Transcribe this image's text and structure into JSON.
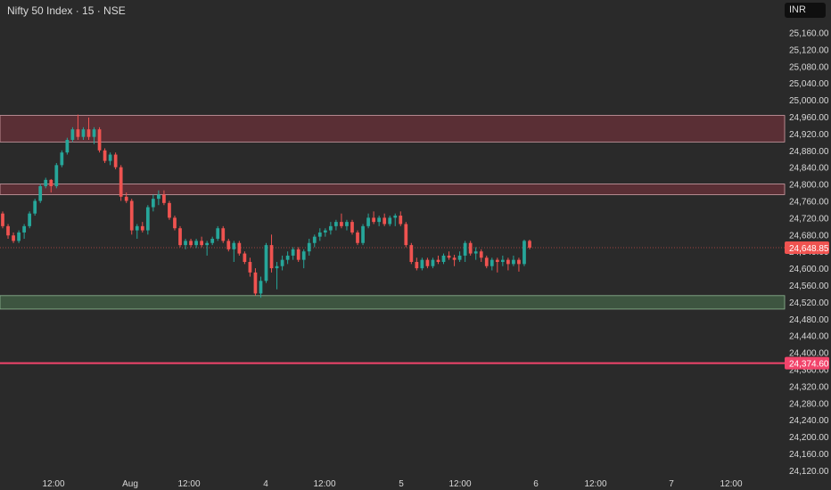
{
  "header": {
    "title": "Nifty 50 Index · 15 · NSE",
    "currency": "INR"
  },
  "colors": {
    "background": "#2a2a2a",
    "up": "#26a69a",
    "down": "#ef5350",
    "text": "#d9d9d9",
    "resistance_zone": "#5a2f35",
    "support_zone": "#3d5540",
    "support_line": "#f2446b",
    "last_price_tag": "#ef5350",
    "line_tag": "#f2446b"
  },
  "chart_data": {
    "type": "candlestick",
    "symbol": "Nifty 50 Index",
    "interval": "15",
    "exchange": "NSE",
    "currency": "INR",
    "last_price": 24648.85,
    "ylim": [
      24100,
      25220
    ],
    "y_ticks": [
      "25,160.00",
      "25,120.00",
      "25,080.00",
      "25,040.00",
      "25,000.00",
      "24,960.00",
      "24,920.00",
      "24,880.00",
      "24,840.00",
      "24,800.00",
      "24,760.00",
      "24,720.00",
      "24,680.00",
      "24,640.00",
      "24,600.00",
      "24,560.00",
      "24,520.00",
      "24,480.00",
      "24,440.00",
      "24,400.00",
      "24,360.00",
      "24,320.00",
      "24,280.00",
      "24,240.00",
      "24,200.00",
      "24,160.00",
      "24,120.00"
    ],
    "x_labels": [
      "12:00",
      "Aug",
      "12:00",
      "4",
      "12:00",
      "5",
      "12:00",
      "6",
      "12:00",
      "7",
      "12:00"
    ],
    "price_labels": [
      {
        "value": 24648.85,
        "text": "24,648.85",
        "kind": "last"
      },
      {
        "value": 24374.6,
        "text": "24,374.60",
        "kind": "line"
      }
    ],
    "zones": [
      {
        "name": "resistance",
        "from": 24900,
        "to": 24963
      },
      {
        "name": "resistance",
        "from": 24775,
        "to": 24800
      },
      {
        "name": "support",
        "from": 24503,
        "to": 24535
      }
    ],
    "lines": [
      {
        "value": 24374.6
      }
    ],
    "candles": [
      {
        "o": 24730,
        "h": 24735,
        "l": 24695,
        "c": 24700
      },
      {
        "o": 24700,
        "h": 24705,
        "l": 24670,
        "c": 24678
      },
      {
        "o": 24678,
        "h": 24685,
        "l": 24660,
        "c": 24665
      },
      {
        "o": 24665,
        "h": 24690,
        "l": 24660,
        "c": 24685
      },
      {
        "o": 24685,
        "h": 24705,
        "l": 24670,
        "c": 24700
      },
      {
        "o": 24700,
        "h": 24735,
        "l": 24695,
        "c": 24730
      },
      {
        "o": 24730,
        "h": 24765,
        "l": 24725,
        "c": 24760
      },
      {
        "o": 24760,
        "h": 24800,
        "l": 24755,
        "c": 24795
      },
      {
        "o": 24795,
        "h": 24815,
        "l": 24790,
        "c": 24810
      },
      {
        "o": 24810,
        "h": 24812,
        "l": 24780,
        "c": 24795
      },
      {
        "o": 24795,
        "h": 24850,
        "l": 24790,
        "c": 24845
      },
      {
        "o": 24845,
        "h": 24880,
        "l": 24840,
        "c": 24875
      },
      {
        "o": 24875,
        "h": 24910,
        "l": 24870,
        "c": 24905
      },
      {
        "o": 24905,
        "h": 24935,
        "l": 24900,
        "c": 24930
      },
      {
        "o": 24930,
        "h": 24965,
        "l": 24905,
        "c": 24912
      },
      {
        "o": 24912,
        "h": 24935,
        "l": 24905,
        "c": 24930
      },
      {
        "o": 24930,
        "h": 24958,
        "l": 24905,
        "c": 24912
      },
      {
        "o": 24912,
        "h": 24935,
        "l": 24895,
        "c": 24930
      },
      {
        "o": 24930,
        "h": 24935,
        "l": 24875,
        "c": 24880
      },
      {
        "o": 24880,
        "h": 24885,
        "l": 24850,
        "c": 24855
      },
      {
        "o": 24855,
        "h": 24875,
        "l": 24845,
        "c": 24870
      },
      {
        "o": 24870,
        "h": 24875,
        "l": 24835,
        "c": 24840
      },
      {
        "o": 24840,
        "h": 24845,
        "l": 24760,
        "c": 24770
      },
      {
        "o": 24770,
        "h": 24780,
        "l": 24755,
        "c": 24760
      },
      {
        "o": 24760,
        "h": 24765,
        "l": 24680,
        "c": 24690
      },
      {
        "o": 24690,
        "h": 24705,
        "l": 24670,
        "c": 24700
      },
      {
        "o": 24700,
        "h": 24710,
        "l": 24685,
        "c": 24690
      },
      {
        "o": 24690,
        "h": 24750,
        "l": 24680,
        "c": 24745
      },
      {
        "o": 24745,
        "h": 24775,
        "l": 24735,
        "c": 24765
      },
      {
        "o": 24765,
        "h": 24785,
        "l": 24750,
        "c": 24775
      },
      {
        "o": 24775,
        "h": 24785,
        "l": 24750,
        "c": 24755
      },
      {
        "o": 24755,
        "h": 24760,
        "l": 24715,
        "c": 24720
      },
      {
        "o": 24720,
        "h": 24725,
        "l": 24690,
        "c": 24695
      },
      {
        "o": 24695,
        "h": 24700,
        "l": 24650,
        "c": 24655
      },
      {
        "o": 24655,
        "h": 24670,
        "l": 24645,
        "c": 24665
      },
      {
        "o": 24665,
        "h": 24670,
        "l": 24650,
        "c": 24655
      },
      {
        "o": 24655,
        "h": 24670,
        "l": 24648,
        "c": 24665
      },
      {
        "o": 24665,
        "h": 24675,
        "l": 24650,
        "c": 24655
      },
      {
        "o": 24655,
        "h": 24665,
        "l": 24630,
        "c": 24660
      },
      {
        "o": 24660,
        "h": 24675,
        "l": 24655,
        "c": 24670
      },
      {
        "o": 24670,
        "h": 24700,
        "l": 24665,
        "c": 24695
      },
      {
        "o": 24695,
        "h": 24700,
        "l": 24660,
        "c": 24665
      },
      {
        "o": 24665,
        "h": 24670,
        "l": 24640,
        "c": 24645
      },
      {
        "o": 24645,
        "h": 24665,
        "l": 24615,
        "c": 24660
      },
      {
        "o": 24660,
        "h": 24665,
        "l": 24630,
        "c": 24635
      },
      {
        "o": 24635,
        "h": 24640,
        "l": 24610,
        "c": 24615
      },
      {
        "o": 24615,
        "h": 24625,
        "l": 24580,
        "c": 24590
      },
      {
        "o": 24590,
        "h": 24600,
        "l": 24535,
        "c": 24540
      },
      {
        "o": 24540,
        "h": 24580,
        "l": 24530,
        "c": 24570
      },
      {
        "o": 24570,
        "h": 24660,
        "l": 24565,
        "c": 24655
      },
      {
        "o": 24655,
        "h": 24680,
        "l": 24590,
        "c": 24600
      },
      {
        "o": 24600,
        "h": 24615,
        "l": 24550,
        "c": 24605
      },
      {
        "o": 24605,
        "h": 24630,
        "l": 24595,
        "c": 24620
      },
      {
        "o": 24620,
        "h": 24640,
        "l": 24610,
        "c": 24630
      },
      {
        "o": 24630,
        "h": 24650,
        "l": 24620,
        "c": 24645
      },
      {
        "o": 24645,
        "h": 24650,
        "l": 24615,
        "c": 24620
      },
      {
        "o": 24620,
        "h": 24645,
        "l": 24600,
        "c": 24640
      },
      {
        "o": 24640,
        "h": 24670,
        "l": 24630,
        "c": 24660
      },
      {
        "o": 24660,
        "h": 24680,
        "l": 24650,
        "c": 24675
      },
      {
        "o": 24675,
        "h": 24695,
        "l": 24665,
        "c": 24685
      },
      {
        "o": 24685,
        "h": 24695,
        "l": 24675,
        "c": 24690
      },
      {
        "o": 24690,
        "h": 24710,
        "l": 24680,
        "c": 24700
      },
      {
        "o": 24700,
        "h": 24715,
        "l": 24690,
        "c": 24710
      },
      {
        "o": 24710,
        "h": 24730,
        "l": 24695,
        "c": 24700
      },
      {
        "o": 24700,
        "h": 24715,
        "l": 24690,
        "c": 24710
      },
      {
        "o": 24710,
        "h": 24715,
        "l": 24680,
        "c": 24685
      },
      {
        "o": 24685,
        "h": 24690,
        "l": 24655,
        "c": 24660
      },
      {
        "o": 24660,
        "h": 24705,
        "l": 24655,
        "c": 24700
      },
      {
        "o": 24700,
        "h": 24730,
        "l": 24695,
        "c": 24720
      },
      {
        "o": 24720,
        "h": 24735,
        "l": 24705,
        "c": 24710
      },
      {
        "o": 24710,
        "h": 24725,
        "l": 24700,
        "c": 24720
      },
      {
        "o": 24720,
        "h": 24730,
        "l": 24700,
        "c": 24705
      },
      {
        "o": 24705,
        "h": 24725,
        "l": 24700,
        "c": 24720
      },
      {
        "o": 24720,
        "h": 24730,
        "l": 24700,
        "c": 24725
      },
      {
        "o": 24725,
        "h": 24735,
        "l": 24700,
        "c": 24705
      },
      {
        "o": 24705,
        "h": 24710,
        "l": 24650,
        "c": 24655
      },
      {
        "o": 24655,
        "h": 24660,
        "l": 24610,
        "c": 24615
      },
      {
        "o": 24615,
        "h": 24625,
        "l": 24595,
        "c": 24600
      },
      {
        "o": 24600,
        "h": 24625,
        "l": 24595,
        "c": 24620
      },
      {
        "o": 24620,
        "h": 24625,
        "l": 24600,
        "c": 24605
      },
      {
        "o": 24605,
        "h": 24625,
        "l": 24600,
        "c": 24620
      },
      {
        "o": 24620,
        "h": 24630,
        "l": 24610,
        "c": 24615
      },
      {
        "o": 24615,
        "h": 24635,
        "l": 24610,
        "c": 24630
      },
      {
        "o": 24630,
        "h": 24640,
        "l": 24620,
        "c": 24625
      },
      {
        "o": 24625,
        "h": 24632,
        "l": 24605,
        "c": 24620
      },
      {
        "o": 24620,
        "h": 24640,
        "l": 24615,
        "c": 24630
      },
      {
        "o": 24630,
        "h": 24665,
        "l": 24615,
        "c": 24660
      },
      {
        "o": 24660,
        "h": 24665,
        "l": 24630,
        "c": 24635
      },
      {
        "o": 24635,
        "h": 24650,
        "l": 24620,
        "c": 24640
      },
      {
        "o": 24640,
        "h": 24645,
        "l": 24615,
        "c": 24625
      },
      {
        "o": 24625,
        "h": 24630,
        "l": 24600,
        "c": 24605
      },
      {
        "o": 24605,
        "h": 24625,
        "l": 24595,
        "c": 24620
      },
      {
        "o": 24620,
        "h": 24625,
        "l": 24590,
        "c": 24615
      },
      {
        "o": 24615,
        "h": 24630,
        "l": 24605,
        "c": 24620
      },
      {
        "o": 24620,
        "h": 24625,
        "l": 24595,
        "c": 24610
      },
      {
        "o": 24610,
        "h": 24630,
        "l": 24605,
        "c": 24620
      },
      {
        "o": 24620,
        "h": 24625,
        "l": 24592,
        "c": 24610
      },
      {
        "o": 24610,
        "h": 24668,
        "l": 24605,
        "c": 24665
      },
      {
        "o": 24665,
        "h": 24668,
        "l": 24645,
        "c": 24648.85
      }
    ]
  }
}
